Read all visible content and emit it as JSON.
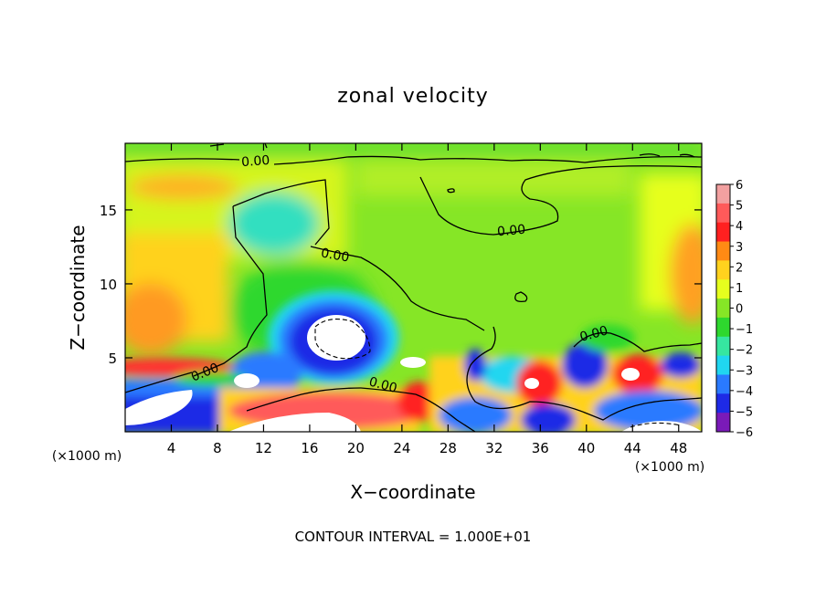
{
  "chart_data": {
    "type": "heatmap",
    "title": "zonal velocity",
    "xlabel": "X−coordinate",
    "ylabel": "Z−coordinate",
    "x_unit_left": "(×1000 m)",
    "x_unit_right": "(×1000 m)",
    "footer": "CONTOUR INTERVAL = 1.000E+01",
    "xlim": [
      0,
      50
    ],
    "ylim": [
      0,
      19.5
    ],
    "x_ticks": [
      4,
      8,
      12,
      16,
      20,
      24,
      28,
      32,
      36,
      40,
      44,
      48
    ],
    "y_ticks": [
      5,
      10,
      15
    ],
    "colorbar": {
      "min": -6,
      "max": 6,
      "labels": [
        "6",
        "5",
        "4",
        "3",
        "2",
        "1",
        "0",
        "−1",
        "−2",
        "−3",
        "−4",
        "−5",
        "−6"
      ],
      "colors": [
        "#f2a0a0",
        "#ff5a5a",
        "#ff2020",
        "#ff8a14",
        "#ffd21e",
        "#e6ff1e",
        "#86e626",
        "#2ed82e",
        "#36e6a0",
        "#20d6f0",
        "#2a7aff",
        "#1e2ae6",
        "#7a1ab8"
      ]
    },
    "contour_label": "0.00",
    "field_features": [
      {
        "x": 18,
        "z": 6.8,
        "value": -6.5
      },
      {
        "x": 13.5,
        "z": 15.5,
        "value": -1.6
      },
      {
        "x": 2.5,
        "z": 7.5,
        "value": 3.5
      },
      {
        "x": 49,
        "z": 10,
        "value": 3.0
      },
      {
        "x": 5.5,
        "z": 17.3,
        "value": 3.0
      },
      {
        "x": 20,
        "z": 1.8,
        "value": 4.5
      },
      {
        "x": 44.5,
        "z": 4.0,
        "value": 5.0
      },
      {
        "x": 35,
        "z": 3.8,
        "value": 5.0
      },
      {
        "x": 2,
        "z": 1.2,
        "value": -6.5
      },
      {
        "x": 46,
        "z": 0.8,
        "value": -6.5
      },
      {
        "x": 14,
        "z": 0.7,
        "value": -5.5
      }
    ]
  }
}
